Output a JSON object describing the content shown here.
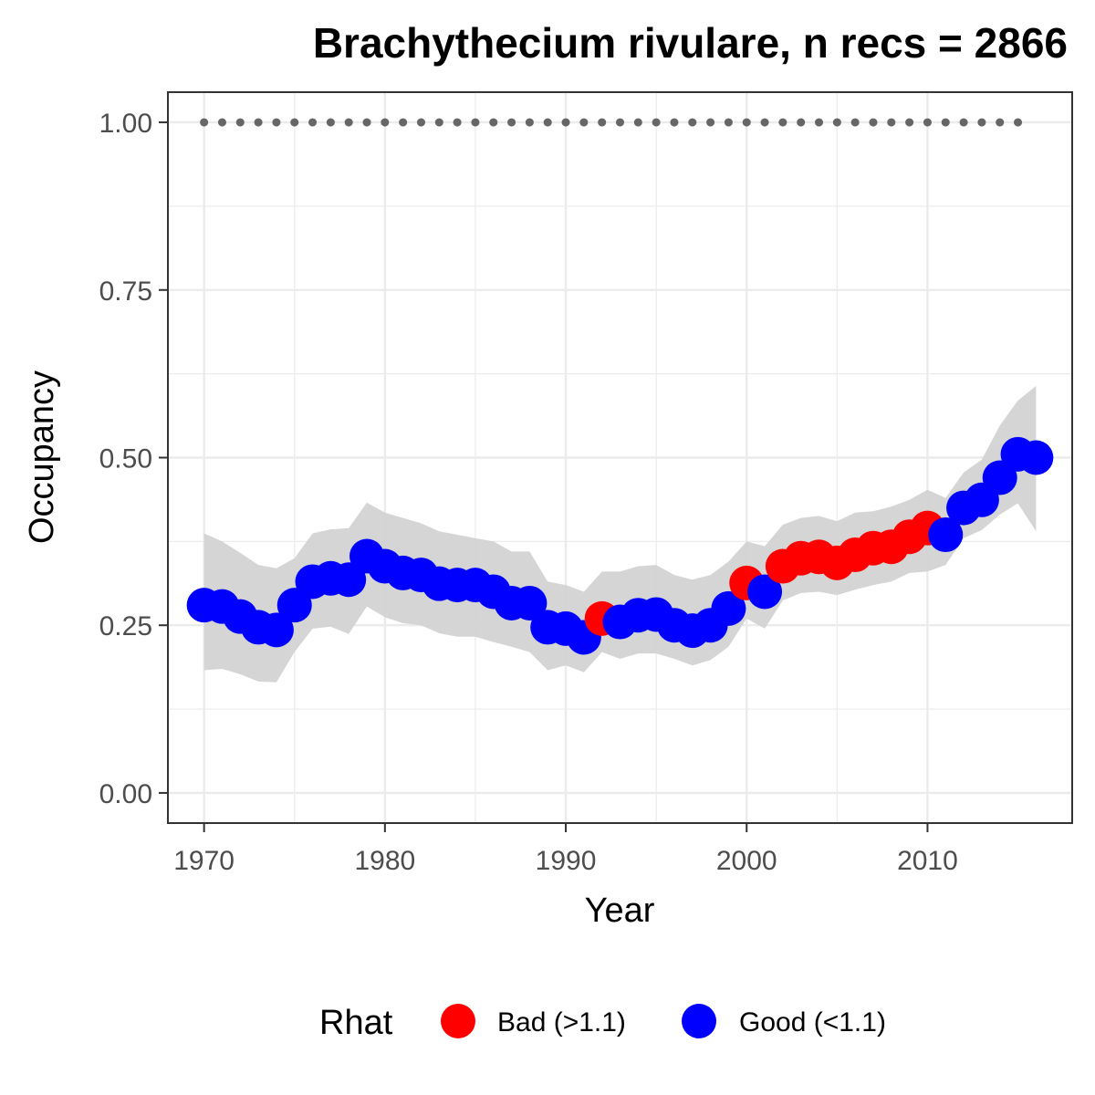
{
  "chart_data": {
    "type": "scatter",
    "title": "Brachythecium rivulare, n recs = 2866",
    "xlabel": "Year",
    "ylabel": "Occupancy",
    "xlim": [
      1968,
      2018
    ],
    "ylim": [
      -0.045,
      1.045
    ],
    "x_ticks": [
      1970,
      1980,
      1990,
      2000,
      2010
    ],
    "x_tick_labels": [
      "1970",
      "1980",
      "1990",
      "2000",
      "2010"
    ],
    "y_ticks": [
      0,
      0.25,
      0.5,
      0.75,
      1
    ],
    "y_tick_labels": [
      "0.00",
      "0.25",
      "0.50",
      "0.75",
      "1.00"
    ],
    "grid": true,
    "legend": {
      "position": "bottom",
      "title": "Rhat",
      "entries": [
        {
          "label": "Bad (>1.1)",
          "color": "#ff0000"
        },
        {
          "label": "Good (<1.1)",
          "color": "#0000ff"
        }
      ]
    },
    "colors": {
      "bad": "#ff0000",
      "good": "#0000ff",
      "ribbon": "#d3d3d3",
      "reference": "#666666"
    },
    "reference_line": {
      "value": 1.0,
      "x": [
        1970,
        1971,
        1972,
        1973,
        1974,
        1975,
        1976,
        1977,
        1978,
        1979,
        1980,
        1981,
        1982,
        1983,
        1984,
        1985,
        1986,
        1987,
        1988,
        1989,
        1990,
        1991,
        1992,
        1993,
        1994,
        1995,
        1996,
        1997,
        1998,
        1999,
        2000,
        2001,
        2002,
        2003,
        2004,
        2005,
        2006,
        2007,
        2008,
        2009,
        2010,
        2011,
        2012,
        2013,
        2014,
        2015
      ]
    },
    "series": [
      {
        "name": "Occupancy",
        "x": [
          1970,
          1971,
          1972,
          1973,
          1974,
          1975,
          1976,
          1977,
          1978,
          1979,
          1980,
          1981,
          1982,
          1983,
          1984,
          1985,
          1986,
          1987,
          1988,
          1989,
          1990,
          1991,
          1992,
          1993,
          1994,
          1995,
          1996,
          1997,
          1998,
          1999,
          2000,
          2001,
          2002,
          2003,
          2004,
          2005,
          2006,
          2007,
          2008,
          2009,
          2010,
          2011,
          2012,
          2013,
          2014,
          2015,
          2016
        ],
        "y": [
          0.28,
          0.278,
          0.263,
          0.247,
          0.243,
          0.28,
          0.315,
          0.32,
          0.318,
          0.353,
          0.338,
          0.328,
          0.325,
          0.312,
          0.31,
          0.31,
          0.3,
          0.283,
          0.283,
          0.247,
          0.245,
          0.232,
          0.26,
          0.255,
          0.265,
          0.266,
          0.25,
          0.242,
          0.25,
          0.275,
          0.313,
          0.3,
          0.338,
          0.35,
          0.352,
          0.343,
          0.355,
          0.365,
          0.367,
          0.382,
          0.395,
          0.385,
          0.425,
          0.437,
          0.47,
          0.505,
          0.5
        ],
        "lower": [
          0.183,
          0.185,
          0.177,
          0.166,
          0.165,
          0.21,
          0.245,
          0.248,
          0.237,
          0.278,
          0.262,
          0.253,
          0.25,
          0.238,
          0.233,
          0.233,
          0.225,
          0.218,
          0.21,
          0.183,
          0.19,
          0.18,
          0.21,
          0.2,
          0.208,
          0.208,
          0.2,
          0.19,
          0.198,
          0.218,
          0.26,
          0.245,
          0.287,
          0.298,
          0.3,
          0.295,
          0.303,
          0.31,
          0.315,
          0.328,
          0.33,
          0.34,
          0.38,
          0.392,
          0.415,
          0.432,
          0.39
        ],
        "upper": [
          0.387,
          0.375,
          0.358,
          0.34,
          0.335,
          0.35,
          0.387,
          0.393,
          0.395,
          0.433,
          0.418,
          0.41,
          0.402,
          0.39,
          0.385,
          0.38,
          0.375,
          0.36,
          0.36,
          0.315,
          0.31,
          0.3,
          0.33,
          0.33,
          0.338,
          0.34,
          0.325,
          0.318,
          0.325,
          0.345,
          0.375,
          0.368,
          0.4,
          0.41,
          0.413,
          0.405,
          0.418,
          0.42,
          0.427,
          0.437,
          0.452,
          0.44,
          0.478,
          0.497,
          0.548,
          0.585,
          0.607
        ],
        "rhat": [
          "good",
          "good",
          "good",
          "good",
          "good",
          "good",
          "good",
          "good",
          "good",
          "good",
          "good",
          "good",
          "good",
          "good",
          "good",
          "good",
          "good",
          "good",
          "good",
          "good",
          "good",
          "good",
          "bad",
          "good",
          "good",
          "good",
          "good",
          "good",
          "good",
          "good",
          "bad",
          "good",
          "bad",
          "bad",
          "bad",
          "bad",
          "bad",
          "bad",
          "bad",
          "bad",
          "bad",
          "good",
          "good",
          "good",
          "good",
          "good",
          "good"
        ]
      }
    ]
  }
}
